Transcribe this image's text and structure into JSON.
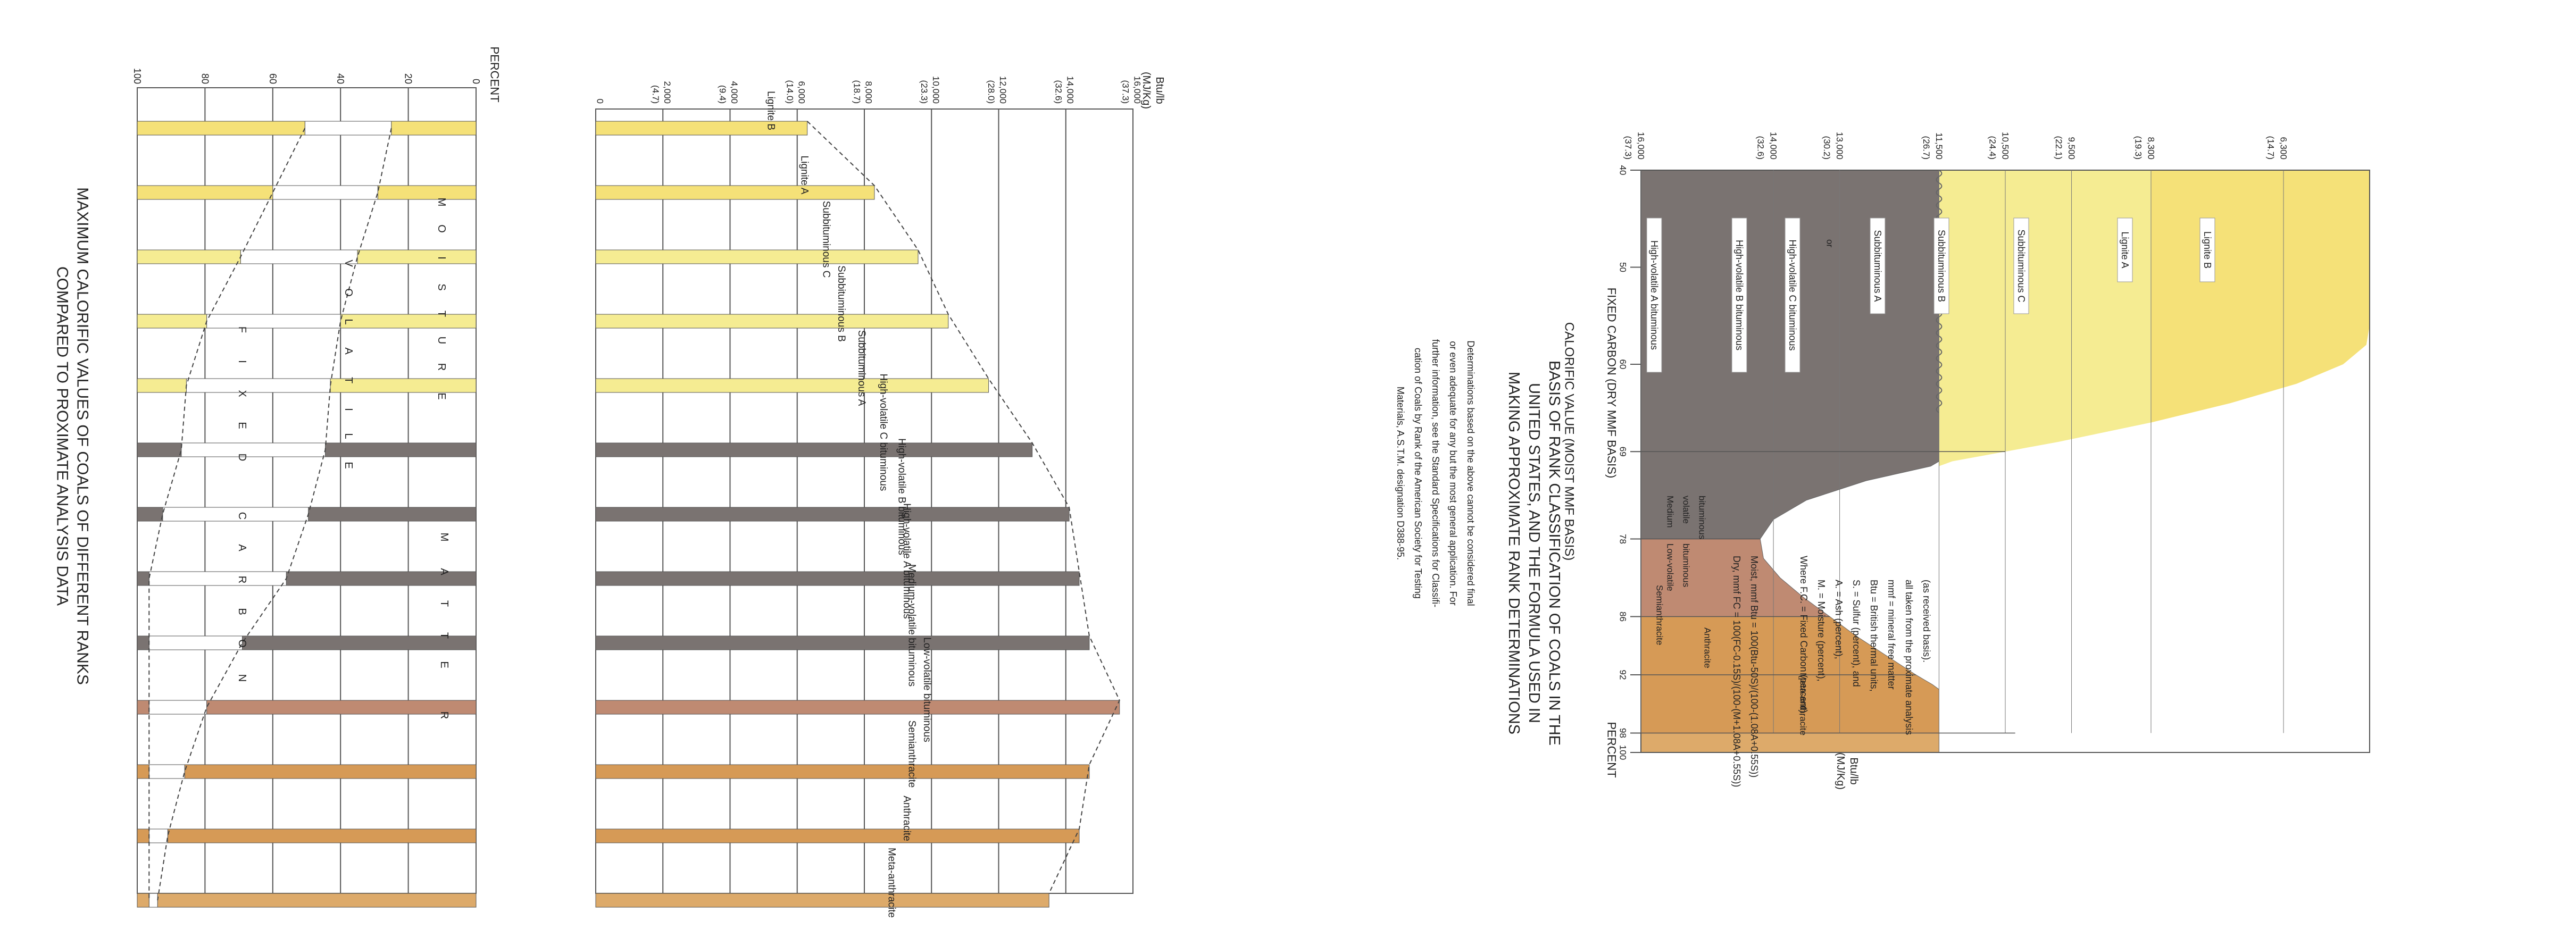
{
  "colors": {
    "lignite": "#f5e178",
    "subbituminous": "#f5ec92",
    "bituminous_hv": "#7a7371",
    "bituminous_lv": "#bf8a72",
    "anthracite": "#d69a56",
    "meta_anthracite": "#ddaa6a",
    "grid": "#555555",
    "white": "#ffffff"
  },
  "chart_data": [
    {
      "type": "bar",
      "id": "percent",
      "title_lines": [
        "MAXIMUM CALORIFIC VALUES OF COALS OF DIFFERENT RANKS",
        "COMPARED TO PROXIMATE ANALYSIS DATA"
      ],
      "ylabel": "PERCENT",
      "ticks": [
        "0",
        "20",
        "40",
        "60",
        "80",
        "100"
      ],
      "ylim": [
        0,
        100
      ],
      "categories": [
        "Lignite B",
        "Lignite A",
        "Subbituminous C",
        "Subbituminous B",
        "Subbituminous A",
        "High-volatile C bituminous",
        "High-volatile B bituminous",
        "High-volatile A bituminous",
        "Medium-volatile bituminous",
        "Low-volatile bituminous",
        "Semianthracite",
        "Anthracite",
        "Meta-anthracite"
      ],
      "series": [
        {
          "name": "MOISTURE",
          "values": [
            49.5,
            40,
            30.5,
            20.5,
            14.5,
            13,
            7.5,
            3.5,
            3.5,
            3.5,
            3.5,
            3.5,
            3.5
          ]
        },
        {
          "name": "VOLATILE MATTER",
          "values": [
            25.5,
            31,
            34.5,
            39.5,
            42.5,
            42.5,
            43,
            40.5,
            27.5,
            17,
            10.5,
            5.5,
            2.5
          ]
        },
        {
          "name": "FIXED CARBON",
          "values": [
            25,
            29,
            35,
            40,
            43,
            44.5,
            49.5,
            56,
            69,
            79.5,
            86,
            91,
            94
          ]
        }
      ],
      "labels": [
        "M",
        "O",
        "I",
        "S",
        "T",
        "U",
        "R",
        "E",
        "V",
        "O",
        "L",
        "A",
        "T",
        "I",
        "L",
        "E",
        "F",
        "I",
        "X",
        "E",
        "D",
        "C",
        "A",
        "R",
        "B",
        "O",
        "N",
        "M",
        "A",
        "T",
        "T",
        "E",
        "R"
      ]
    },
    {
      "type": "bar",
      "id": "calorific",
      "ylabel": "Btu/lb",
      "ylabel2": "(MJ/Kg)",
      "ticks": [
        "0",
        "2,000",
        "4,000",
        "6,000",
        "8,000",
        "10,000",
        "12,000",
        "14,000",
        "16,000"
      ],
      "ticks2": [
        "",
        "(4.7)",
        "(9.4)",
        "(14.0)",
        "(18.7)",
        "(23.3)",
        "(28.0)",
        "(32.6)",
        "(37.3)"
      ],
      "ylim": [
        0,
        16000
      ],
      "categories": [
        "Lignite B",
        "Lignite A",
        "Subbituminous C",
        "Subbituminous B",
        "Subbituminous A",
        "High-volatile C bituminous",
        "High-volatile B bituminous",
        "High-volatile A bituminous",
        "Medium-volatile bituminous",
        "Low-volatile bituminous",
        "Semianthracite",
        "Anthracite",
        "Meta-anthracite"
      ],
      "values": [
        6300,
        8300,
        9600,
        10500,
        11700,
        13000,
        14100,
        14400,
        14700,
        15600,
        14700,
        14400,
        13500
      ]
    },
    {
      "type": "area",
      "id": "rank",
      "title_lines": [
        "BASIS OF RANK CLASSIFICATION OF COALS IN THE",
        "UNITED STATES, AND THE FORMULA USED IN",
        "MAKING APPROXIMATE RANK DETERMINATIONS"
      ],
      "xlabel": "FIXED CARBON (DRY MMF BASIS)",
      "xlabel_right": "PERCENT",
      "x_ticks": [
        "40",
        "50",
        "60",
        "69",
        "78",
        "86",
        "92",
        "98",
        "100"
      ],
      "ylabel": "CALORIFIC VALUE (MOIST MMF BASIS)",
      "yunit": "Btu/lb",
      "yunit2": "(MJ/Kg)",
      "y_ticks": [
        "16,000",
        "14,000",
        "13,000",
        "11,500",
        "10,500",
        "9,500",
        "8,300",
        "6,300"
      ],
      "y_ticks2": [
        "(37.3)",
        "(32.6)",
        "(30.2)",
        "(26.7)",
        "(24.4)",
        "(22.1)",
        "(19.3)",
        "(14.7)"
      ],
      "regions": [
        "High-volatile A bituminous",
        "High-volatile B bituminous",
        "High-volatile C bituminous",
        "or",
        "Subbituminous A",
        "Subbituminous B",
        "Subbituminous C",
        "Lignite A",
        "Lignite B",
        "Medium",
        "volatile",
        "bituminous",
        "Low-volatile",
        "bituminous",
        "Semianthracite",
        "Anthracite",
        "Meta-anthracite"
      ],
      "boundary": {
        "x": [
          40,
          42,
          44,
          46,
          48,
          50,
          52,
          54,
          56,
          58,
          60,
          62,
          64,
          66,
          68,
          69,
          70,
          72,
          74,
          76,
          78,
          80,
          82,
          84,
          86,
          88,
          90,
          92,
          94,
          96,
          98,
          100
        ],
        "y": [
          5000,
          5000,
          5000,
          5000,
          5000,
          5000,
          5000,
          5000,
          5000,
          5050,
          5400,
          6100,
          7100,
          8300,
          9700,
          10500,
          11300,
          12600,
          13500,
          14000,
          14200,
          14150,
          13900,
          13550,
          13150,
          12750,
          12300,
          11850,
          11350,
          10850,
          10350,
          9900
        ]
      }
    }
  ],
  "formula_lines": [
    "Dry, mmf FC  =  100(FC-0.15S)/(100-(M+1.08A+0.55S))",
    "Moist, mmf Btu  =  100(Btu-50S)/(100-(1.08A+0.55S))",
    "Where F.C.  =  Fixed Carbon (percent),",
    "M.  =  Moisture (percent),",
    "A.  =  Ash (percent),",
    "S.  =  Sulfur (percent), and",
    "Btu  =  British thermal units,",
    "mmf  =  mineral free matter",
    "all taken from the proximate analysis",
    "(as received basis)."
  ],
  "note_lines": [
    "Determinations based on the above cannot be considered final",
    "or even adequate for any but the most general application.  For",
    "further information, see the Standard Specifications for Classifi-",
    "cation of Coals by Rank of the American Society for Testing",
    "Materials, A.S.T.M. designation D388-95."
  ]
}
